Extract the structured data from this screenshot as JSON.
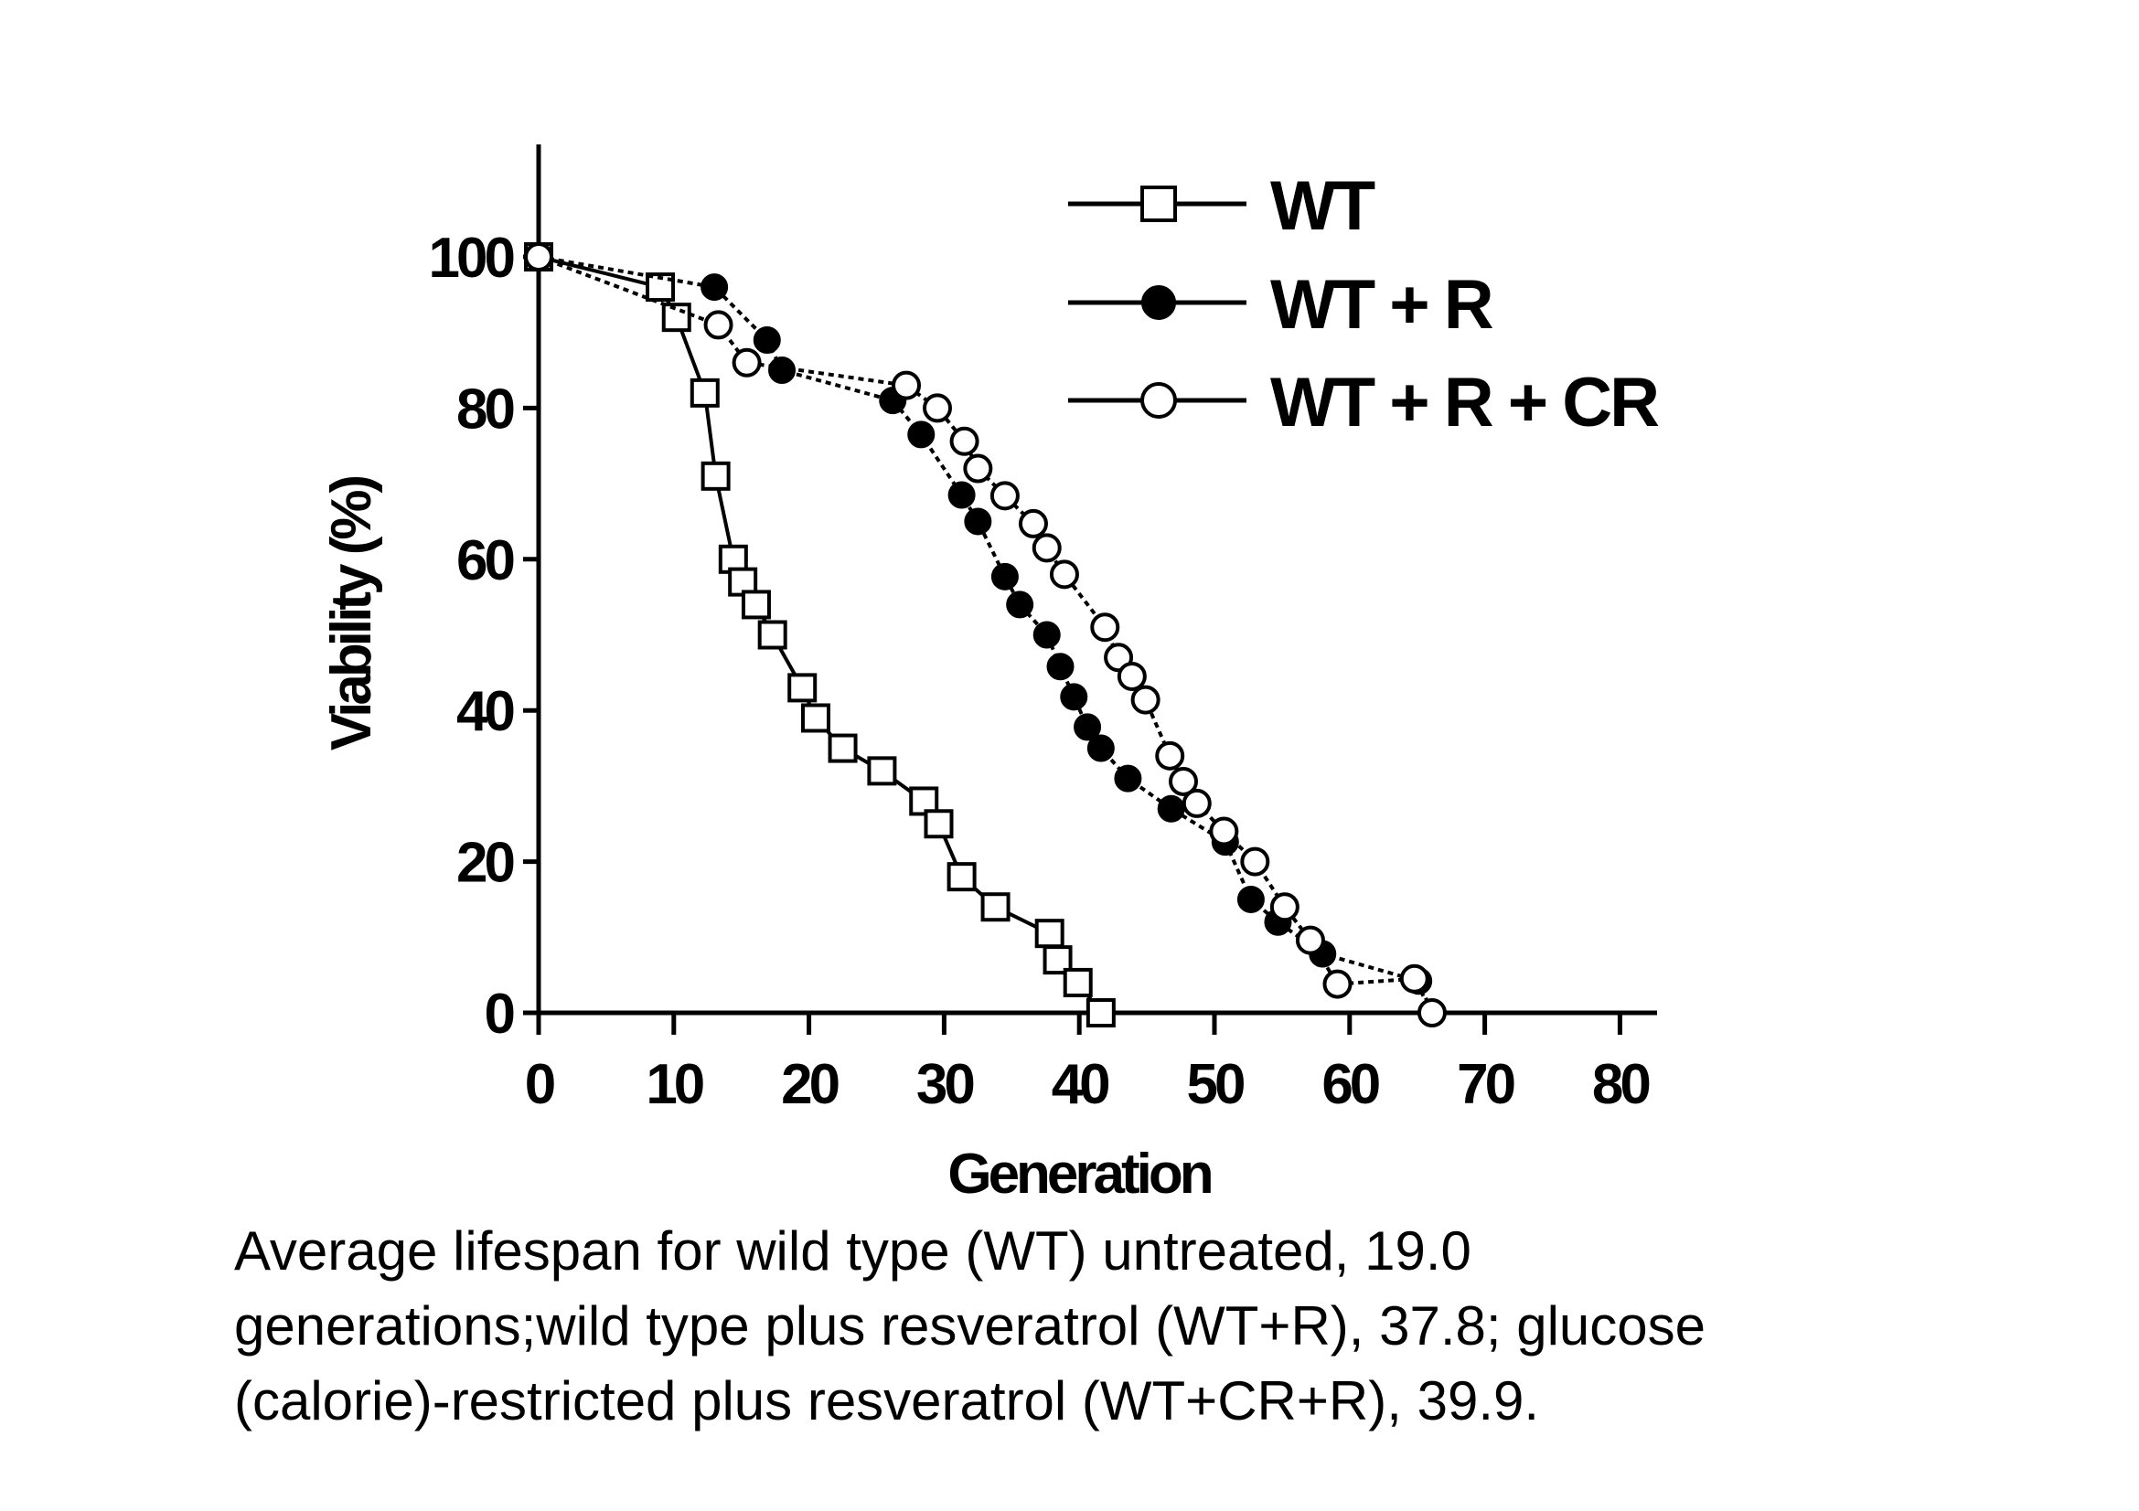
{
  "chart_data": {
    "type": "line",
    "title": "",
    "xlabel": "Generation",
    "ylabel": "Viability (%)",
    "xlim": [
      0,
      80
    ],
    "ylim": [
      0,
      115
    ],
    "xticks": [
      "0",
      "10",
      "20",
      "30",
      "40",
      "50",
      "60",
      "70",
      "80"
    ],
    "yticks": [
      "0",
      "20",
      "40",
      "60",
      "80",
      "100"
    ],
    "grid": false,
    "legend_position": "top-right",
    "series": [
      {
        "name": "WT",
        "marker": "open-square",
        "color": "#000000",
        "points": [
          [
            0,
            100
          ],
          [
            9,
            96
          ],
          [
            10.2,
            92
          ],
          [
            12.3,
            82
          ],
          [
            13.1,
            71
          ],
          [
            14.4,
            60
          ],
          [
            15.1,
            57
          ],
          [
            16.1,
            54
          ],
          [
            17.3,
            50
          ],
          [
            19.5,
            43
          ],
          [
            20.5,
            39
          ],
          [
            22.5,
            35
          ],
          [
            25.4,
            32
          ],
          [
            28.5,
            28
          ],
          [
            29.6,
            25
          ],
          [
            31.3,
            18
          ],
          [
            33.8,
            14
          ],
          [
            37.8,
            10.5
          ],
          [
            38.4,
            7
          ],
          [
            39.9,
            4
          ],
          [
            41.6,
            0
          ]
        ]
      },
      {
        "name": "WT + R",
        "marker": "filled-circle",
        "color": "#000000",
        "points": [
          [
            0,
            100
          ],
          [
            13,
            96
          ],
          [
            16.9,
            89
          ],
          [
            18,
            85
          ],
          [
            26.2,
            81
          ],
          [
            28.3,
            76.5
          ],
          [
            31.3,
            68.5
          ],
          [
            32.5,
            65
          ],
          [
            34.5,
            57.7
          ],
          [
            35.6,
            54
          ],
          [
            37.6,
            50
          ],
          [
            38.6,
            45.8
          ],
          [
            39.6,
            41.8
          ],
          [
            40.6,
            37.8
          ],
          [
            41.6,
            35
          ],
          [
            43.6,
            31
          ],
          [
            46.8,
            27
          ],
          [
            50.8,
            22.6
          ],
          [
            52.7,
            15
          ],
          [
            54.7,
            12
          ],
          [
            58,
            7.8
          ],
          [
            65.1,
            4.2
          ],
          [
            66.1,
            0
          ]
        ]
      },
      {
        "name": "WT + R + CR",
        "marker": "open-circle",
        "color": "#000000",
        "points": [
          [
            0,
            100
          ],
          [
            13.3,
            91
          ],
          [
            15.4,
            86
          ],
          [
            27.2,
            83
          ],
          [
            29.5,
            80
          ],
          [
            31.5,
            75.6
          ],
          [
            32.5,
            72
          ],
          [
            34.5,
            68.4
          ],
          [
            36.6,
            64.7
          ],
          [
            37.6,
            61.5
          ],
          [
            38.9,
            58
          ],
          [
            41.9,
            51
          ],
          [
            42.9,
            47
          ],
          [
            43.9,
            44.5
          ],
          [
            44.9,
            41.4
          ],
          [
            46.7,
            34
          ],
          [
            47.7,
            30.6
          ],
          [
            48.7,
            27.7
          ],
          [
            50.7,
            24
          ],
          [
            53,
            20
          ],
          [
            55.2,
            14
          ],
          [
            57.1,
            9.6
          ],
          [
            59.1,
            3.8
          ],
          [
            64.8,
            4.5
          ],
          [
            66.1,
            0
          ]
        ]
      }
    ]
  },
  "caption": {
    "lines": [
      "Average lifespan for wild type (WT) untreated, 19.0",
      "generations;wild type plus resveratrol (WT+R), 37.8; glucose",
      "(calorie)-restricted plus resveratrol (WT+CR+R), 39.9."
    ]
  }
}
